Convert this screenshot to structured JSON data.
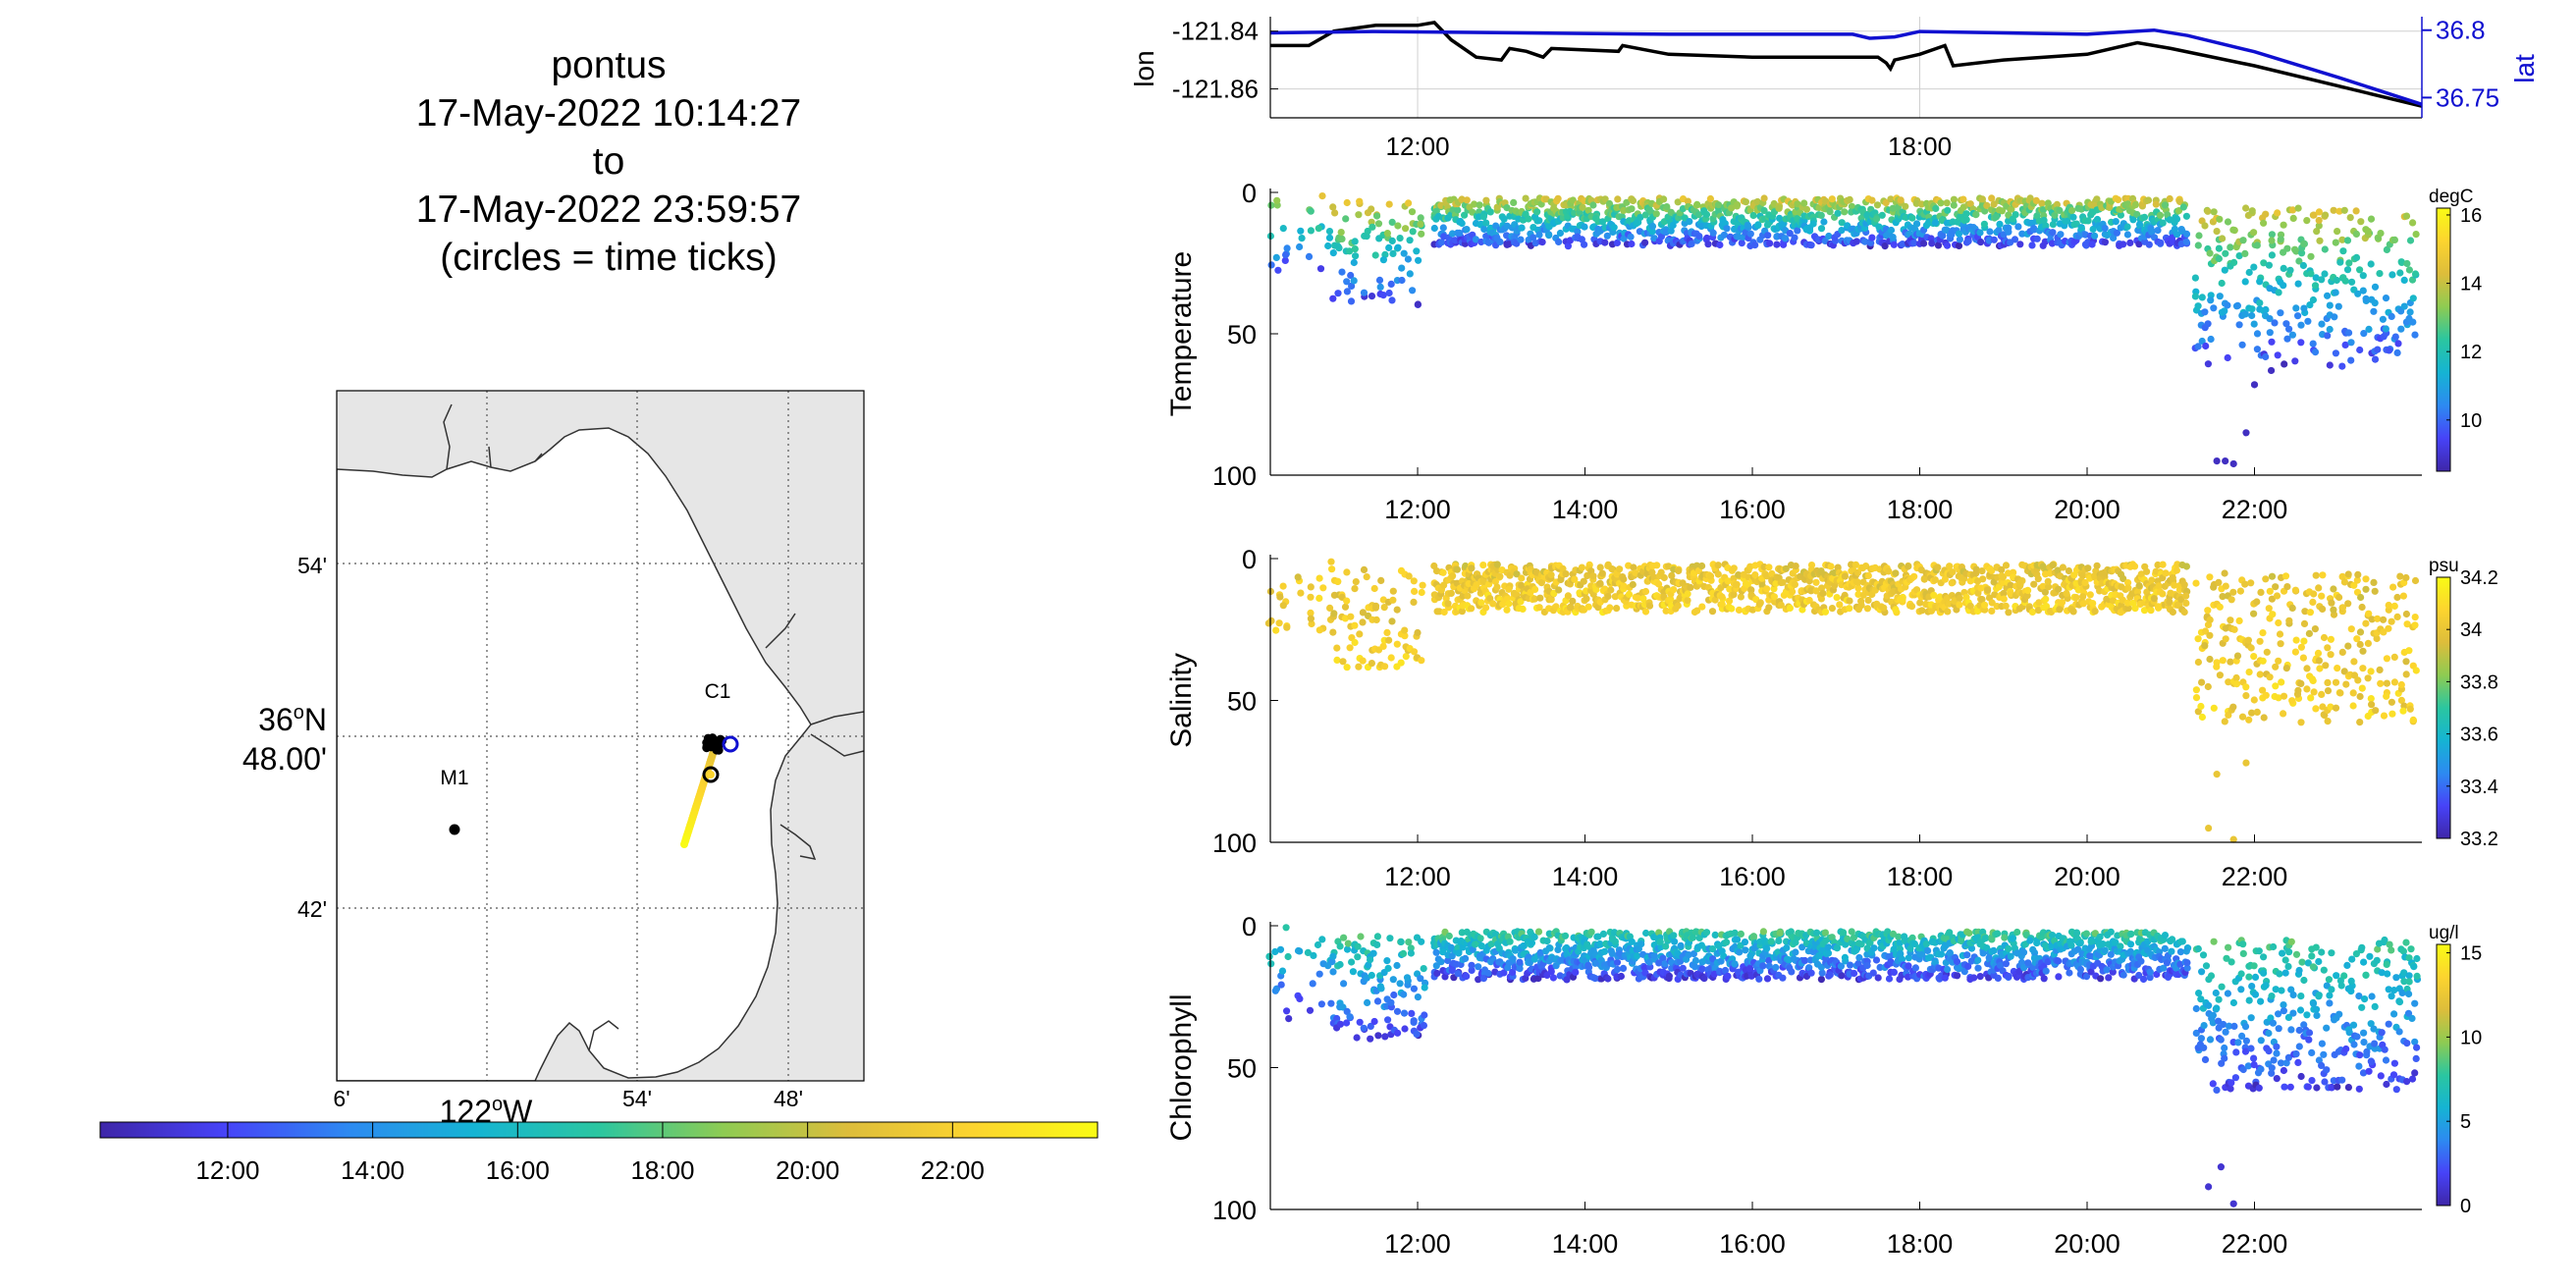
{
  "colors": {
    "lon_line": "#000000",
    "lat_line": "#1010d0",
    "grid": "#d0d0d0",
    "land": "#e6e6e6",
    "parula": [
      "#3e26a8",
      "#4743f8",
      "#2d8af1",
      "#15b4d3",
      "#2bc6a0",
      "#8ecb52",
      "#ddbd3b",
      "#fcd42f",
      "#f9fb15"
    ]
  },
  "title": {
    "lines": [
      "pontus",
      "17-May-2022 10:14:27",
      "to",
      "17-May-2022 23:59:57",
      "(circles = time ticks)"
    ]
  },
  "map": {
    "lat_ticks": [
      "54'",
      "36°N 48.00'",
      "42'"
    ],
    "lat_tick_main": "36",
    "lat_tick_sup": "o",
    "lat_tick_dir": "N",
    "lat_tick_min": "48.00'",
    "lon_ticks": [
      "6'",
      "54'",
      "48'"
    ],
    "lon_center_label": "122",
    "lon_center_sup": "o",
    "lon_center_dir": "W",
    "stations": [
      {
        "name": "M1"
      },
      {
        "name": "C1"
      }
    ],
    "time_colorbar_ticks": [
      "12:00",
      "14:00",
      "16:00",
      "18:00",
      "20:00",
      "22:00"
    ]
  },
  "chart_data": [
    {
      "type": "line",
      "ylabel": "lon",
      "y2label": "lat",
      "x_ticks": [
        "12:00",
        "18:00"
      ],
      "xlim": [
        10.24,
        24.0
      ],
      "ylim": [
        -121.87,
        -121.835
      ],
      "y2lim": [
        36.735,
        36.81
      ],
      "y_ticks": [
        "-121.84",
        "-121.86"
      ],
      "y2_ticks": [
        "36.8",
        "36.75"
      ],
      "series": [
        {
          "name": "lon",
          "x": [
            10.24,
            10.7,
            11.0,
            11.5,
            12.0,
            12.2,
            12.4,
            12.7,
            13.0,
            13.1,
            13.3,
            13.5,
            13.6,
            14.4,
            14.45,
            15.0,
            16.0,
            17.0,
            17.5,
            17.6,
            17.65,
            17.7,
            18.0,
            18.3,
            18.4,
            19.0,
            20.0,
            20.6,
            21.0,
            22.0,
            23.0,
            24.0
          ],
          "y": [
            -121.845,
            -121.845,
            -121.84,
            -121.838,
            -121.838,
            -121.837,
            -121.843,
            -121.849,
            -121.85,
            -121.846,
            -121.847,
            -121.849,
            -121.846,
            -121.847,
            -121.845,
            -121.848,
            -121.849,
            -121.849,
            -121.849,
            -121.851,
            -121.853,
            -121.85,
            -121.848,
            -121.845,
            -121.852,
            -121.85,
            -121.848,
            -121.844,
            -121.846,
            -121.852,
            -121.859,
            -121.866
          ]
        },
        {
          "name": "lat",
          "x": [
            10.24,
            11.5,
            15.0,
            17.2,
            17.4,
            17.7,
            18.0,
            20.0,
            20.8,
            21.2,
            22.0,
            23.0,
            24.0
          ],
          "y": [
            36.798,
            36.799,
            36.797,
            36.797,
            36.794,
            36.795,
            36.799,
            36.797,
            36.8,
            36.796,
            36.784,
            36.765,
            36.745
          ]
        }
      ]
    },
    {
      "type": "scatter",
      "ylabel": "Temperature",
      "unit": "degC",
      "xlim": [
        10.24,
        24.0
      ],
      "ylim": [
        0,
        100
      ],
      "y_ticks": [
        "0",
        "50",
        "100"
      ],
      "x_ticks": [
        "12:00",
        "14:00",
        "16:00",
        "18:00",
        "20:00",
        "22:00"
      ],
      "clim": [
        8.5,
        16.2
      ],
      "c_ticks": [
        "16",
        "14",
        "12",
        "10"
      ],
      "profile": {
        "surface": 14.2,
        "deep": 9.2
      },
      "segments": [
        {
          "x": [
            10.24,
            10.5
          ],
          "depth": [
            0,
            30
          ],
          "step": 0.09,
          "vals": 1
        },
        {
          "x": [
            10.6,
            11.0
          ],
          "depth": [
            0,
            28
          ],
          "step": 0.12,
          "vals": 1
        },
        {
          "x": [
            11.0,
            12.1
          ],
          "depth": [
            3,
            40
          ],
          "step": 0.05,
          "vals": 1
        },
        {
          "x": [
            12.2,
            21.2
          ],
          "depth": [
            2,
            19
          ],
          "step": 0.028,
          "vals": 1
        },
        {
          "x": [
            21.3,
            23.95
          ],
          "depth": [
            5,
            62
          ],
          "step": 0.035,
          "vals": 1
        }
      ],
      "outliers": {
        "x": [
          21.55,
          21.65,
          21.75,
          21.9,
          22.0,
          22.2
        ],
        "y": [
          95,
          95,
          96,
          85,
          68,
          63
        ]
      }
    },
    {
      "type": "scatter",
      "ylabel": "Salinity",
      "unit": "psu",
      "xlim": [
        10.24,
        24.0
      ],
      "ylim": [
        0,
        100
      ],
      "y_ticks": [
        "0",
        "50",
        "100"
      ],
      "x_ticks": [
        "12:00",
        "14:00",
        "16:00",
        "18:00",
        "20:00",
        "22:00"
      ],
      "clim": [
        33.2,
        34.2
      ],
      "c_ticks": [
        "34.2",
        "34",
        "33.8",
        "33.6",
        "33.4",
        "33.2"
      ],
      "profile": {
        "surface": 34.0,
        "deep": 34.05
      },
      "segments": [
        {
          "x": [
            10.24,
            10.5
          ],
          "depth": [
            0,
            30
          ],
          "step": 0.09,
          "vals": 1
        },
        {
          "x": [
            10.6,
            11.0
          ],
          "depth": [
            0,
            28
          ],
          "step": 0.12,
          "vals": 1
        },
        {
          "x": [
            11.0,
            12.1
          ],
          "depth": [
            3,
            40
          ],
          "step": 0.05,
          "vals": 1
        },
        {
          "x": [
            12.2,
            21.2
          ],
          "depth": [
            2,
            19
          ],
          "step": 0.028,
          "vals": 1
        },
        {
          "x": [
            21.3,
            23.95
          ],
          "depth": [
            5,
            58
          ],
          "step": 0.035,
          "vals": 1
        }
      ],
      "outliers": {
        "x": [
          21.45,
          21.55,
          21.75,
          21.9
        ],
        "y": [
          95,
          76,
          99,
          72
        ]
      }
    },
    {
      "type": "scatter",
      "ylabel": "Chlorophyll",
      "unit": "ug/l",
      "xlim": [
        10.24,
        24.0
      ],
      "ylim": [
        0,
        100
      ],
      "y_ticks": [
        "0",
        "50",
        "100"
      ],
      "x_ticks": [
        "12:00",
        "14:00",
        "16:00",
        "18:00",
        "20:00",
        "22:00"
      ],
      "clim": [
        0,
        15.5
      ],
      "c_ticks": [
        "15",
        "10",
        "5",
        "0"
      ],
      "profile": {
        "surface": 8.0,
        "deep": 1.5
      },
      "segments": [
        {
          "x": [
            10.24,
            10.5
          ],
          "depth": [
            0,
            35
          ],
          "step": 0.07,
          "vals": 1
        },
        {
          "x": [
            10.6,
            11.0
          ],
          "depth": [
            0,
            30
          ],
          "step": 0.12,
          "vals": 1
        },
        {
          "x": [
            11.0,
            12.1
          ],
          "depth": [
            3,
            40
          ],
          "step": 0.04,
          "vals": 1
        },
        {
          "x": [
            12.2,
            21.2
          ],
          "depth": [
            2,
            19
          ],
          "step": 0.026,
          "vals": 1
        },
        {
          "x": [
            21.3,
            23.95
          ],
          "depth": [
            5,
            58
          ],
          "step": 0.03,
          "vals": 1
        }
      ],
      "outliers": {
        "x": [
          21.45,
          21.6,
          21.75
        ],
        "y": [
          92,
          85,
          98
        ]
      }
    }
  ]
}
